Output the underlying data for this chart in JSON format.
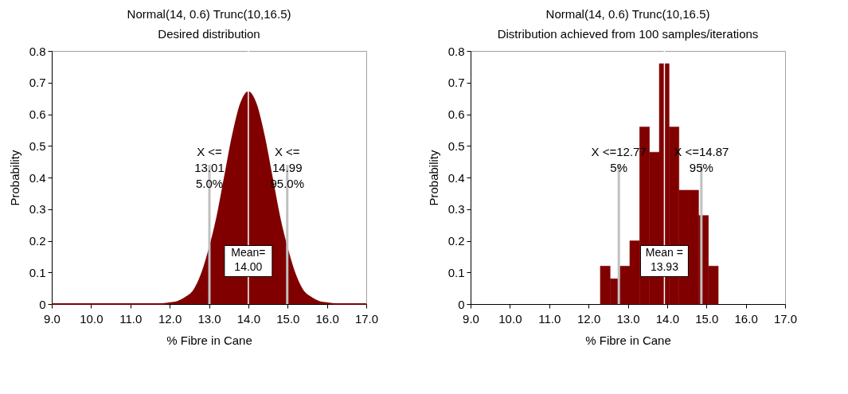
{
  "chart_data": [
    {
      "type": "area",
      "title": "Normal(14, 0.6) Trunc(10,16.5)",
      "subtitle": "Desired distribution",
      "xlabel": "% Fibre in Cane",
      "ylabel": "Probability",
      "x": [
        9,
        11.6,
        11.8,
        12.0,
        12.2,
        12.4,
        12.6,
        12.8,
        13.0,
        13.2,
        13.4,
        13.6,
        13.8,
        14.0,
        14.2,
        14.4,
        14.6,
        14.8,
        15.0,
        15.2,
        15.4,
        15.6,
        15.8,
        16.0,
        16.2,
        16.4,
        17
      ],
      "series": [
        {
          "color": "#800000",
          "values": [
            0,
            0,
            0,
            0.003,
            0.007,
            0.02,
            0.04,
            0.09,
            0.17,
            0.27,
            0.4,
            0.53,
            0.63,
            0.67,
            0.63,
            0.53,
            0.4,
            0.27,
            0.17,
            0.09,
            0.04,
            0.02,
            0.007,
            0.003,
            0,
            0,
            0
          ]
        }
      ],
      "xlim": [
        9,
        17
      ],
      "xticks": [
        {
          "value": 9,
          "label": "9.0"
        },
        {
          "value": 10,
          "label": "10.0"
        },
        {
          "value": 11,
          "label": "11.0"
        },
        {
          "value": 12,
          "label": "12.0"
        },
        {
          "value": 13,
          "label": "13.0"
        },
        {
          "value": 14,
          "label": "14.0"
        },
        {
          "value": 15,
          "label": "15.0"
        },
        {
          "value": 16,
          "label": "16.0"
        },
        {
          "value": 17,
          "label": "17.0"
        }
      ],
      "ylim": [
        0,
        0.8
      ],
      "yticks": [
        0,
        0.1,
        0.2,
        0.3,
        0.4,
        0.5,
        0.6,
        0.7,
        0.8
      ],
      "grid": false,
      "ref_lines": [
        {
          "axis": "x",
          "value": 13.01,
          "label": "X <=\n13.01\n5.0%",
          "color": "#c0c0c0"
        },
        {
          "axis": "x",
          "value": 14.99,
          "label": "X <=\n14.99\n95.0%",
          "color": "#c0c0c0"
        },
        {
          "axis": "x",
          "value": 14.0,
          "label": "Mean=\n14.00",
          "color": "#ffffff"
        }
      ]
    },
    {
      "type": "histogram",
      "title": "Normal(14, 0.6) Trunc(10,16.5)",
      "subtitle": "Distribution achieved from 100 samples/iterations",
      "xlabel": "% Fibre in Cane",
      "ylabel": "Probability",
      "bins": [
        12.3,
        12.55,
        12.8,
        13.05,
        13.3,
        13.55,
        13.8,
        14.05,
        14.3,
        14.55,
        14.8,
        15.05,
        15.3
      ],
      "values": [
        0.12,
        0.08,
        0.12,
        0.2,
        0.56,
        0.48,
        0.76,
        0.56,
        0.36,
        0.36,
        0.28,
        0.12
      ],
      "color": "#800000",
      "xlim": [
        9,
        17
      ],
      "xticks": [
        {
          "value": 9,
          "label": "9.0"
        },
        {
          "value": 10,
          "label": "10.0"
        },
        {
          "value": 11,
          "label": "11.0"
        },
        {
          "value": 12,
          "label": "12.0"
        },
        {
          "value": 13,
          "label": "13.0"
        },
        {
          "value": 14,
          "label": "14.0"
        },
        {
          "value": 15,
          "label": "15.0"
        },
        {
          "value": 16,
          "label": "16.0"
        },
        {
          "value": 17,
          "label": "17.0"
        }
      ],
      "ylim": [
        0,
        0.8
      ],
      "yticks": [
        0,
        0.1,
        0.2,
        0.3,
        0.4,
        0.5,
        0.6,
        0.7,
        0.8
      ],
      "grid": false,
      "ref_lines": [
        {
          "axis": "x",
          "value": 12.77,
          "label": "X <=12.77\n5%",
          "color": "#c0c0c0"
        },
        {
          "axis": "x",
          "value": 14.87,
          "label": "X <=14.87\n95%",
          "color": "#c0c0c0"
        },
        {
          "axis": "x",
          "value": 13.93,
          "label": "Mean =\n13.93",
          "color": "#ffffff"
        }
      ]
    }
  ]
}
